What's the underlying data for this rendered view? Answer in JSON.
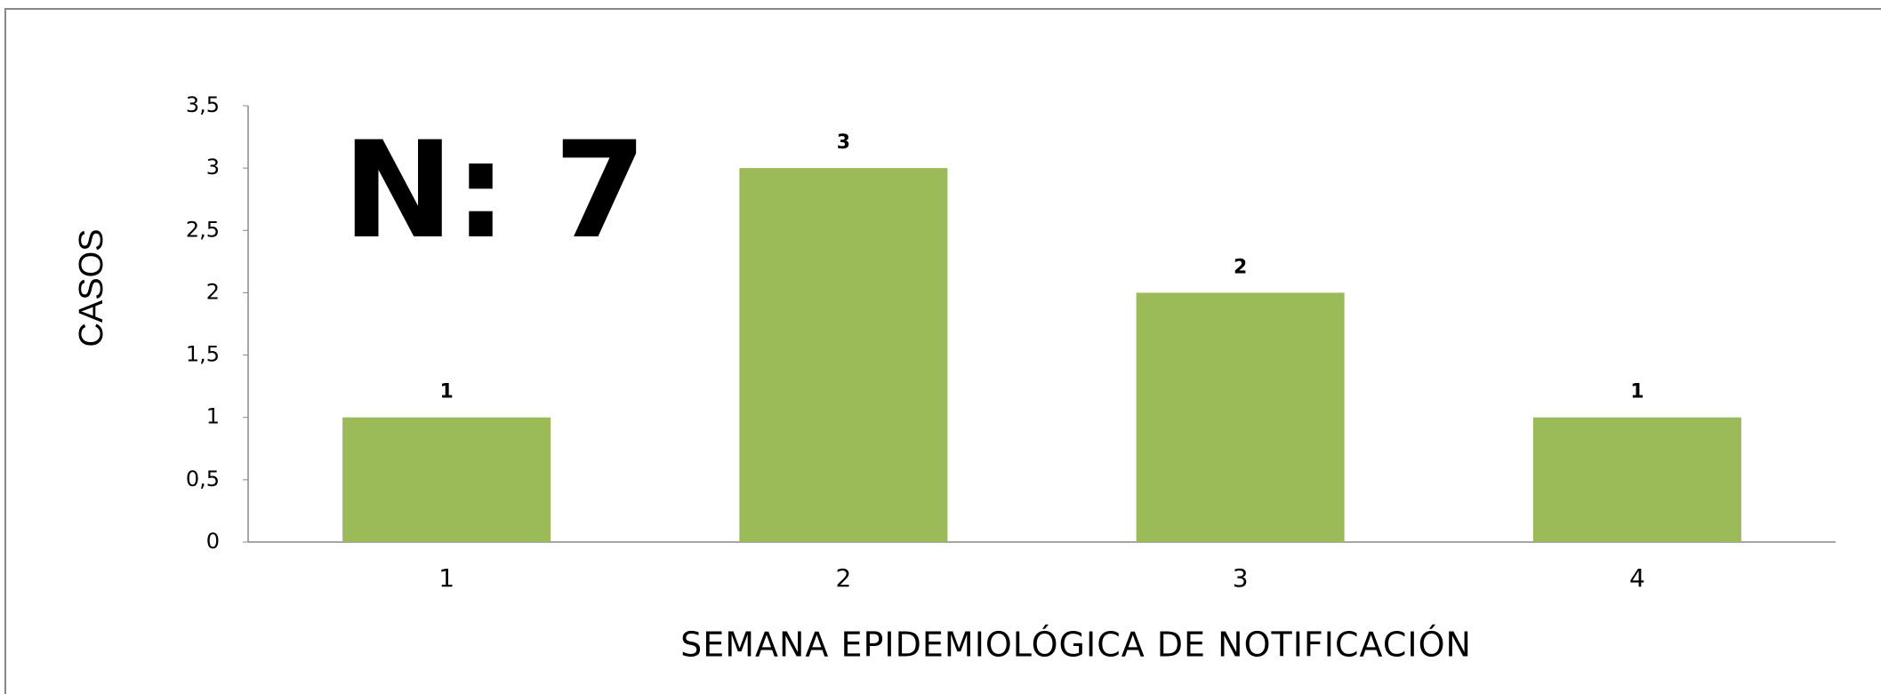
{
  "chart_data": {
    "type": "bar",
    "annotation": "N: 7",
    "x_label": "SEMANA EPIDEMIOLÓGICA DE NOTIFICACIÓN",
    "y_label": "CASOS",
    "categories": [
      "1",
      "2",
      "3",
      "4"
    ],
    "values": [
      1,
      3,
      2,
      1
    ],
    "color": "#9bbb59",
    "ylim": [
      0,
      3.5
    ],
    "yticks": [
      0,
      {
        "value": 0.5,
        "label": "0,5"
      },
      1,
      {
        "value": 1.5,
        "label": "1,5"
      },
      2,
      {
        "value": 2.5,
        "label": "2,5"
      },
      3,
      {
        "value": 3.5,
        "label": "3,5"
      }
    ]
  }
}
